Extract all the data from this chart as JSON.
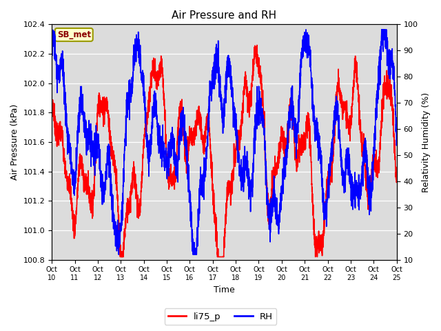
{
  "title": "Air Pressure and RH",
  "xlabel": "Time",
  "ylabel_left": "Air Pressure (kPa)",
  "ylabel_right": "Relativity Humidity (%)",
  "annotation": "SB_met",
  "annotation_color": "#8B0000",
  "annotation_bg": "#FFFFCC",
  "annotation_border": "#999900",
  "ylim_left": [
    100.8,
    102.4
  ],
  "ylim_right": [
    10,
    100
  ],
  "yticks_left": [
    100.8,
    101.0,
    101.2,
    101.4,
    101.6,
    101.8,
    102.0,
    102.2,
    102.4
  ],
  "yticks_right": [
    10,
    20,
    30,
    40,
    50,
    60,
    70,
    80,
    90,
    100
  ],
  "xtick_labels": [
    "Oct 10",
    "Oct 11",
    "Oct 12",
    "Oct 13",
    "Oct 14",
    "Oct 15",
    "Oct 16",
    "Oct 17",
    "Oct 18",
    "Oct 19",
    "Oct 20",
    "Oct 21",
    "Oct 22",
    "Oct 23",
    "Oct 24",
    "Oct 25"
  ],
  "legend_labels": [
    "li75_p",
    "RH"
  ],
  "line_color_p": "red",
  "line_color_rh": "blue",
  "line_width": 1.2,
  "bg_color": "#DCDCDC",
  "fig_bg": "#FFFFFF"
}
